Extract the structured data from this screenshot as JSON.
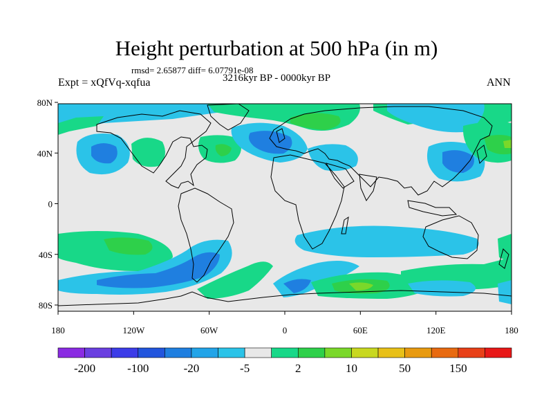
{
  "header": {
    "title": "Height perturbation at 500 hPa (in m)",
    "stats": "rmsd= 2.65877 diff= 6.07791e-08",
    "period": "3216kyr BP - 0000kyr BP",
    "experiment": "Expt = xQfVq-xqfua",
    "season": "ANN"
  },
  "map": {
    "lat_ticks": [
      "80N",
      "40N",
      "0",
      "40S",
      "80S"
    ],
    "lon_ticks": [
      "180",
      "120W",
      "60W",
      "0",
      "60E",
      "120E",
      "180"
    ]
  },
  "colorbar": {
    "labels": [
      "-200",
      "-100",
      "-20",
      "-5",
      "2",
      "10",
      "50",
      "150"
    ],
    "colors": [
      "#8a2be2",
      "#6a3fe0",
      "#3c3ce8",
      "#2255dd",
      "#1f7fe0",
      "#22a4e8",
      "#2bc3e8",
      "#e8e8e8",
      "#18d888",
      "#2ed04a",
      "#7ad82a",
      "#c8d820",
      "#e8c018",
      "#e89a10",
      "#e86a10",
      "#e84018",
      "#e81818"
    ],
    "base_color": "#e8e8e8"
  }
}
